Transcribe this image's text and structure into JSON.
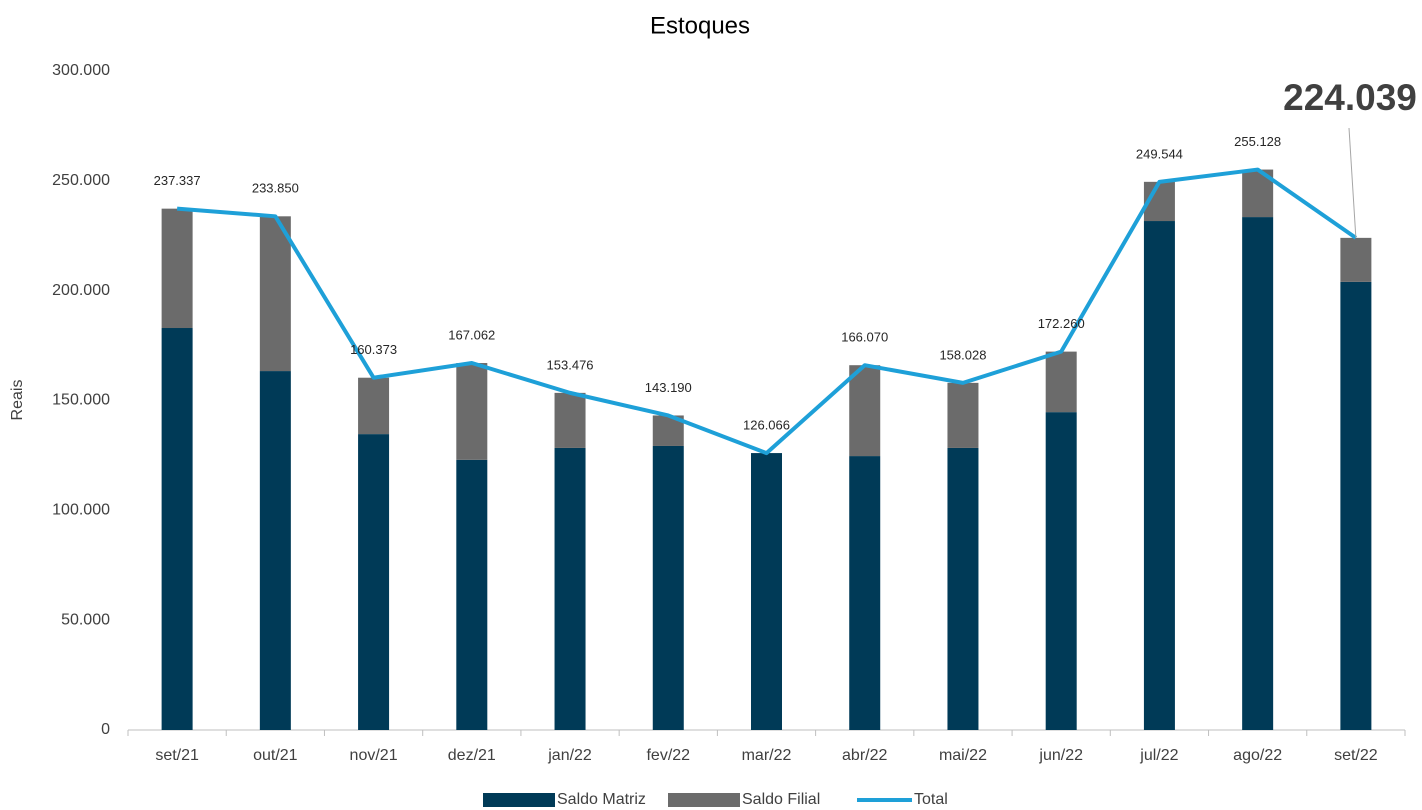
{
  "chart_data": {
    "type": "bar",
    "title": "Estoques",
    "y_label": "Reais",
    "categories": [
      "set/21",
      "out/21",
      "nov/21",
      "dez/21",
      "jan/22",
      "fev/22",
      "mar/22",
      "abr/22",
      "mai/22",
      "jun/22",
      "jul/22",
      "ago/22",
      "set/22"
    ],
    "series": [
      {
        "name": "Saldo Matriz",
        "color": "#003a57",
        "stack": true,
        "values": [
          183000,
          163400,
          134700,
          123000,
          128400,
          129300,
          126066,
          124700,
          128400,
          144700,
          231700,
          233500,
          204000
        ]
      },
      {
        "name": "Saldo Filial",
        "color": "#6b6b6b",
        "stack": true,
        "values": [
          54337,
          70450,
          25673,
          44062,
          25076,
          13890,
          0,
          41370,
          29628,
          27560,
          17844,
          21628,
          20039
        ]
      },
      {
        "name": "Total",
        "color": "#1ea0d8",
        "type": "line",
        "values": [
          237337,
          233850,
          160373,
          167062,
          153476,
          143190,
          126066,
          166070,
          158028,
          172260,
          249544,
          255128,
          224039
        ],
        "value_labels": [
          "237.337",
          "233.850",
          "160.373",
          "167.062",
          "153.476",
          "143.190",
          "126.066",
          "166.070",
          "158.028",
          "172.260",
          "249.544",
          "255.128",
          "224.039"
        ]
      }
    ],
    "ylim": [
      0,
      300000
    ],
    "yticks": [
      0,
      {
        "value": 50000,
        "label": "50.000"
      },
      {
        "value": 100000,
        "label": "100.000"
      },
      {
        "value": 150000,
        "label": "150.000"
      },
      {
        "value": 200000,
        "label": "200.000"
      },
      {
        "value": 250000,
        "label": "250.000"
      },
      {
        "value": 300000,
        "label": "300.000"
      }
    ],
    "grid": false,
    "legend": "bottom"
  }
}
